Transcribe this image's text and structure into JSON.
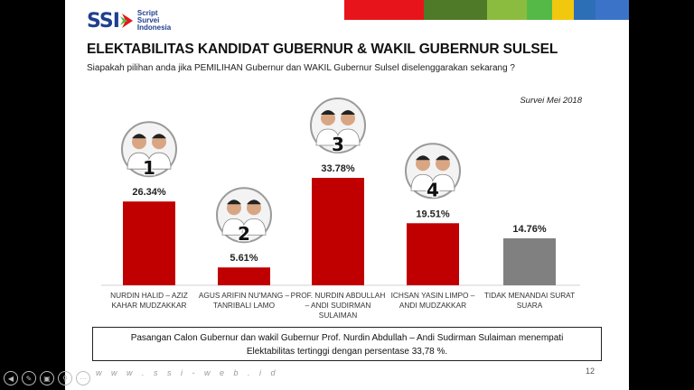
{
  "logo": {
    "brand": "SSI",
    "line1": "Script",
    "line2": "Survei",
    "line3": "Indonesia"
  },
  "colors": {
    "bar_red": "#c00000",
    "bar_grey": "#808080",
    "brand_blue": "#1f3f8f",
    "strip": [
      "#e8141b",
      "#4f7a28",
      "#8cbc3f",
      "#55b948",
      "#f2c80f",
      "#2d6fb7",
      "#3b73c9"
    ]
  },
  "title": "ELEKTABILITAS KANDIDAT GUBERNUR & WAKIL GUBERNUR SULSEL",
  "subtitle": "Siapakah pilihan anda jika PEMILIHAN Gubernur dan WAKIL Gubernur Sulsel diselenggarakan sekarang ?",
  "survey_label": "Survei Mei 2018",
  "chart_data": {
    "type": "bar",
    "categories": [
      [
        "NURDIN HALID – AZIZ",
        "KAHAR MUDZAKKAR"
      ],
      [
        "AGUS ARIFIN NU'MANG –",
        "TANRIBALI LAMO"
      ],
      [
        "PROF. NURDIN ABDULLAH",
        "– ANDI SUDIRMAN",
        "SULAIMAN"
      ],
      [
        "ICHSAN YASIN LIMPO –",
        "ANDI MUDZAKKAR"
      ],
      [
        "TIDAK MENANDAI SURAT",
        "SUARA"
      ]
    ],
    "values": [
      26.34,
      5.61,
      33.78,
      19.51,
      14.76
    ],
    "data_labels": [
      "26.34%",
      "5.61%",
      "33.78%",
      "19.51%",
      "14.76%"
    ],
    "candidate_numbers": [
      "1",
      "2",
      "3",
      "4",
      ""
    ],
    "bar_colors": [
      "#c00000",
      "#c00000",
      "#c00000",
      "#c00000",
      "#808080"
    ],
    "ylim": [
      0,
      35
    ],
    "grid": false
  },
  "note_line1": "Pasangan Calon Gubernur dan wakil Gubernur Prof. Nurdin Abdullah – Andi Sudirman Sulaiman menempati",
  "note_line2": "Elektabilitas tertinggi dengan persentase 33,78 %.",
  "footer_url": "w w w . s s i - w e b . i d",
  "page_number": "12"
}
